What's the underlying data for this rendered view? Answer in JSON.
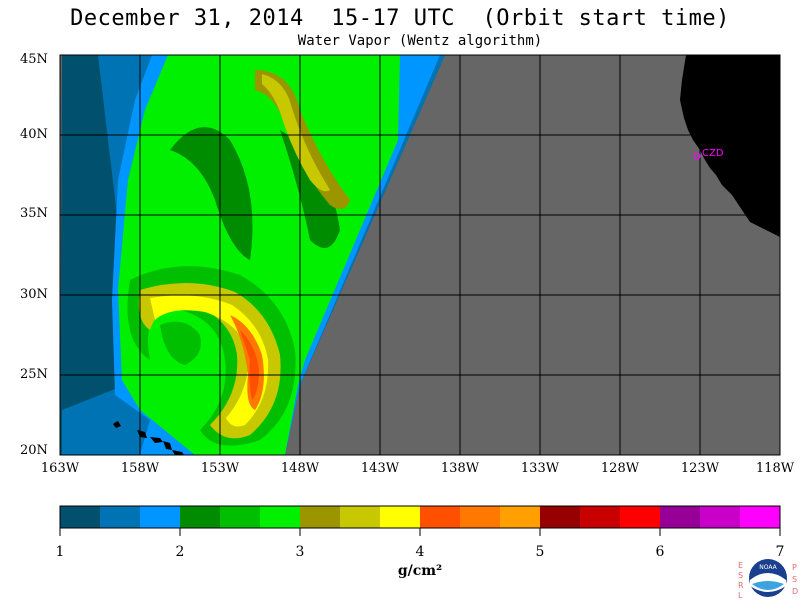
{
  "header": {
    "title": "December 31, 2014  15-17 UTC  (Orbit start time)",
    "subtitle": "Water Vapor (Wentz algorithm)"
  },
  "map": {
    "lat_labels": [
      "45N",
      "40N",
      "35N",
      "30N",
      "25N",
      "20N"
    ],
    "lon_labels": [
      "163W",
      "158W",
      "153W",
      "148W",
      "143W",
      "138W",
      "133W",
      "128W",
      "123W",
      "118W"
    ],
    "station_label": "CZD",
    "colors": {
      "no_data": "#666666",
      "land": "#000000",
      "grid": "#000000",
      "station": "#ff00ff"
    }
  },
  "colorbar": {
    "ticks": [
      "1",
      "2",
      "3",
      "4",
      "5",
      "6",
      "7"
    ],
    "unit": "g/cm²",
    "colors": [
      "#00506e",
      "#0073b4",
      "#0096ff",
      "#008c00",
      "#00be00",
      "#00f000",
      "#9b9600",
      "#c8c800",
      "#ffff00",
      "#ff5000",
      "#ff7800",
      "#ffa000",
      "#960000",
      "#c80000",
      "#ff0000",
      "#960096",
      "#c800c8",
      "#ff00ff"
    ]
  },
  "logo": {
    "left_letters": "ESRL",
    "right_letters": "PSD",
    "emblem_text": "NOAA"
  }
}
